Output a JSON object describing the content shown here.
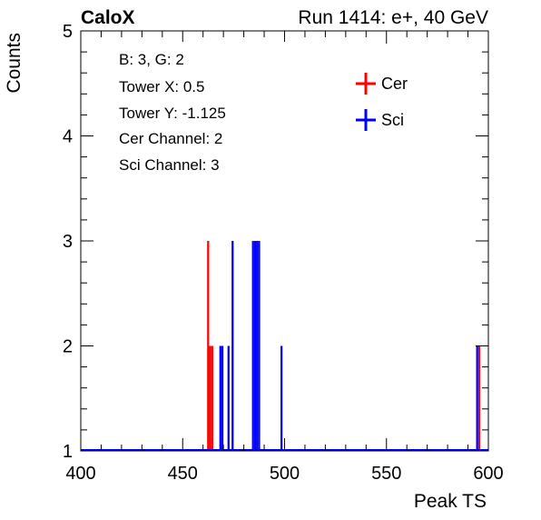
{
  "header": {
    "left_title": "CaloX",
    "right_title": "Run 1414: e+, 40 GeV"
  },
  "info_box": {
    "lines": [
      "B: 3, G: 2",
      "Tower X: 0.5",
      "Tower Y: -1.125",
      "Cer Channel: 2",
      "Sci Channel: 3"
    ]
  },
  "chart_data": {
    "type": "bar",
    "xlabel": "Peak TS",
    "ylabel": "Counts",
    "xlim": [
      400,
      600
    ],
    "ylim": [
      1,
      5
    ],
    "x_ticks": [
      400,
      450,
      500,
      550,
      600
    ],
    "y_ticks": [
      1,
      2,
      3,
      4,
      5
    ],
    "legend": {
      "placement": "top-right"
    },
    "series": [
      {
        "name": "Cer",
        "color": "#ff0000",
        "bins": [
          {
            "x": 462,
            "y": 3
          },
          {
            "x": 463,
            "y": 2
          },
          {
            "x": 464,
            "y": 2
          },
          {
            "x": 595,
            "y": 2
          }
        ]
      },
      {
        "name": "Sci",
        "color": "#0000ff",
        "bins": [
          {
            "x": 468,
            "y": 2
          },
          {
            "x": 469,
            "y": 2
          },
          {
            "x": 472,
            "y": 2
          },
          {
            "x": 474,
            "y": 3
          },
          {
            "x": 484,
            "y": 3
          },
          {
            "x": 485,
            "y": 3
          },
          {
            "x": 486,
            "y": 3
          },
          {
            "x": 487,
            "y": 3
          },
          {
            "x": 498,
            "y": 2
          },
          {
            "x": 594,
            "y": 2
          }
        ]
      }
    ]
  }
}
